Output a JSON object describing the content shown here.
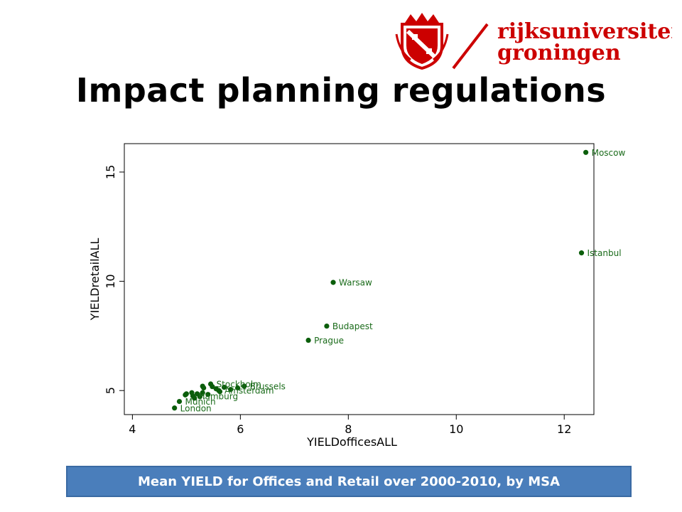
{
  "slide": {
    "title": "Impact planning regulations",
    "caption": "Mean YIELD for Offices and Retail over 2000-2010, by MSA"
  },
  "logo": {
    "name": "rijksuniversiteit groningen",
    "line1": "rijksuniversiteit",
    "line2": "groningen",
    "color": "#cc0000"
  },
  "colors": {
    "points": "#0b5e0b",
    "labels": "#1a6b1a",
    "caption_bg": "#4a7ebb"
  },
  "chart_data": {
    "type": "scatter",
    "xlabel": "YIELDofficesALL",
    "ylabel": "YIELDretailALL",
    "xlim": [
      3.85,
      12.55
    ],
    "ylim": [
      3.9,
      16.3
    ],
    "xticks": [
      4,
      6,
      8,
      10,
      12
    ],
    "yticks": [
      5,
      10,
      15
    ],
    "grid": false,
    "points": [
      {
        "label": "Moscow",
        "x": 12.4,
        "y": 15.9
      },
      {
        "label": "Istanbul",
        "x": 12.32,
        "y": 11.3
      },
      {
        "label": "Warsaw",
        "x": 7.72,
        "y": 9.95
      },
      {
        "label": "Budapest",
        "x": 7.6,
        "y": 7.95
      },
      {
        "label": "Prague",
        "x": 7.26,
        "y": 7.3
      },
      {
        "label": "Stockholm",
        "x": 5.45,
        "y": 5.3
      },
      {
        "label": "Brussels",
        "x": 6.07,
        "y": 5.2
      },
      {
        "label": "Amsterdam",
        "x": 5.6,
        "y": 5.0
      },
      {
        "label": "Hamburg",
        "x": 5.12,
        "y": 4.75
      },
      {
        "label": "Munich",
        "x": 4.87,
        "y": 4.5
      },
      {
        "label": "London",
        "x": 4.78,
        "y": 4.2
      },
      {
        "label": "",
        "x": 5.3,
        "y": 5.2
      },
      {
        "label": "",
        "x": 5.32,
        "y": 5.12
      },
      {
        "label": "",
        "x": 5.48,
        "y": 5.18
      },
      {
        "label": "",
        "x": 5.55,
        "y": 5.08
      },
      {
        "label": "",
        "x": 5.7,
        "y": 5.15
      },
      {
        "label": "",
        "x": 5.82,
        "y": 5.05
      },
      {
        "label": "",
        "x": 5.95,
        "y": 5.12
      },
      {
        "label": "",
        "x": 5.62,
        "y": 4.95
      },
      {
        "label": "",
        "x": 5.0,
        "y": 4.85
      },
      {
        "label": "",
        "x": 4.98,
        "y": 4.8
      },
      {
        "label": "",
        "x": 5.1,
        "y": 4.9
      },
      {
        "label": "",
        "x": 5.2,
        "y": 4.85
      },
      {
        "label": "",
        "x": 5.3,
        "y": 4.9
      },
      {
        "label": "",
        "x": 5.4,
        "y": 4.82
      },
      {
        "label": "",
        "x": 5.25,
        "y": 4.72
      },
      {
        "label": "",
        "x": 5.15,
        "y": 4.65
      }
    ]
  }
}
